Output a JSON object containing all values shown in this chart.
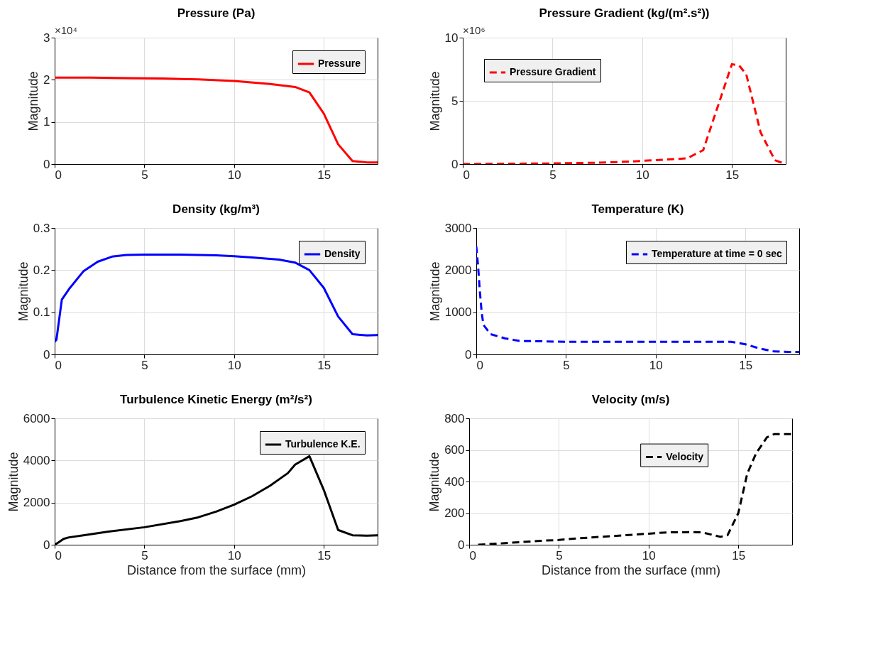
{
  "chart_data": [
    {
      "type": "line",
      "title": "Pressure (Pa)",
      "ylabel": "Magnitude",
      "annotations": [
        "×10⁴"
      ],
      "x": [
        0,
        2,
        4,
        6,
        8,
        10,
        12,
        13.4,
        14.2,
        15,
        15.8,
        16.6,
        17.4,
        18
      ],
      "series": [
        {
          "name": "Pressure",
          "color": "#ff0000",
          "values": [
            2.05,
            2.05,
            2.04,
            2.03,
            2.01,
            1.97,
            1.9,
            1.83,
            1.7,
            1.2,
            0.47,
            0.07,
            0.04,
            0.04
          ]
        }
      ],
      "xlim": [
        0,
        18
      ],
      "xticks": [
        0,
        5,
        10,
        15
      ],
      "ylim": [
        0,
        3
      ],
      "yticks": [
        0,
        1,
        2,
        3
      ],
      "grid": true,
      "legend": "top right",
      "line_style": "solid"
    },
    {
      "type": "line",
      "title": "Pressure Gradient (kg/(m².s²))",
      "ylabel": "Magnitude",
      "annotations": [
        "×10⁶"
      ],
      "x": [
        0,
        2,
        5,
        8,
        10,
        12.5,
        13.4,
        14.2,
        15,
        15.4,
        15.8,
        16.6,
        17.4,
        18
      ],
      "series": [
        {
          "name": "Pressure Gradient",
          "color": "#ff0000",
          "values": [
            0,
            0.02,
            0.05,
            0.12,
            0.25,
            0.45,
            1.1,
            4.5,
            7.9,
            7.8,
            7.1,
            2.5,
            0.3,
            0
          ]
        }
      ],
      "xlim": [
        0,
        18
      ],
      "xticks": [
        0,
        5,
        10,
        15
      ],
      "ylim": [
        0,
        10
      ],
      "yticks": [
        0,
        5,
        10
      ],
      "grid": true,
      "legend": "top left",
      "line_style": "dashed"
    },
    {
      "type": "line",
      "title": "Density (kg/m³)",
      "ylabel": "Magnitude",
      "x": [
        0,
        0.1,
        0.4,
        0.8,
        1.6,
        2.4,
        3.2,
        4,
        5,
        7,
        9,
        10,
        11,
        12.5,
        13.4,
        14.2,
        15,
        15.8,
        16.6,
        17.4,
        18
      ],
      "series": [
        {
          "name": "Density",
          "color": "#0000ff",
          "values": [
            0.03,
            0.035,
            0.13,
            0.155,
            0.197,
            0.22,
            0.232,
            0.236,
            0.237,
            0.237,
            0.235,
            0.233,
            0.23,
            0.225,
            0.218,
            0.2,
            0.158,
            0.09,
            0.048,
            0.045,
            0.046
          ]
        }
      ],
      "xlim": [
        0,
        18
      ],
      "xticks": [
        0,
        5,
        10,
        15
      ],
      "ylim": [
        0,
        0.3
      ],
      "yticks": [
        0,
        0.1,
        0.2,
        0.3
      ],
      "grid": true,
      "legend": "top right",
      "line_style": "solid"
    },
    {
      "type": "line",
      "title": "Temperature (K)",
      "ylabel": "Magnitude",
      "x": [
        0,
        0.1,
        0.2,
        0.3,
        0.4,
        0.8,
        1.6,
        2.4,
        5,
        10,
        14.2,
        15,
        15.8,
        16.6,
        17.4,
        18
      ],
      "series": [
        {
          "name": "Temperature at time = 0 sec",
          "color": "#0000ff",
          "values": [
            2570,
            2100,
            1500,
            1000,
            700,
            480,
            380,
            320,
            300,
            300,
            300,
            240,
            140,
            70,
            60,
            60
          ]
        }
      ],
      "xlim": [
        0,
        18
      ],
      "xticks": [
        0,
        5,
        10,
        15
      ],
      "ylim": [
        0,
        3000
      ],
      "yticks": [
        0,
        1000,
        2000,
        3000
      ],
      "grid": true,
      "legend": "top right",
      "line_style": "dashed"
    },
    {
      "type": "line",
      "title": "Turbulence Kinetic Energy (m²/s²)",
      "xlabel": "Distance from the surface (mm)",
      "ylabel": "Magnitude",
      "x": [
        0,
        0.2,
        0.5,
        0.8,
        1.6,
        3,
        5,
        7,
        8,
        9,
        10,
        11,
        12,
        13,
        13.4,
        14.2,
        15,
        15.8,
        16.6,
        17.4,
        18
      ],
      "series": [
        {
          "name": "Turbulence K.E.",
          "color": "#000000",
          "values": [
            0,
            100,
            280,
            350,
            450,
            620,
            830,
            1120,
            1300,
            1570,
            1900,
            2300,
            2800,
            3400,
            3800,
            4200,
            2600,
            700,
            450,
            430,
            450
          ]
        }
      ],
      "xlim": [
        0,
        18
      ],
      "xticks": [
        0,
        5,
        10,
        15
      ],
      "ylim": [
        0,
        6000
      ],
      "yticks": [
        0,
        2000,
        4000,
        6000
      ],
      "grid": true,
      "legend": "top right",
      "line_style": "solid"
    },
    {
      "type": "line",
      "title": "Velocity (m/s)",
      "xlabel": "Distance from the surface (mm)",
      "ylabel": "Magnitude",
      "x": [
        0.5,
        2,
        4,
        5,
        6,
        8,
        10,
        11,
        12.5,
        13,
        14,
        14.4,
        15,
        15.5,
        16,
        16.6,
        17,
        18
      ],
      "series": [
        {
          "name": "Velocity",
          "color": "#000000",
          "values": [
            0,
            10,
            25,
            30,
            40,
            55,
            70,
            78,
            80,
            78,
            50,
            60,
            200,
            450,
            580,
            680,
            700,
            700
          ]
        }
      ],
      "xlim": [
        0,
        18
      ],
      "xticks": [
        0,
        5,
        10,
        15
      ],
      "ylim": [
        0,
        800
      ],
      "yticks": [
        0,
        200,
        400,
        600,
        800
      ],
      "grid": true,
      "legend": "right",
      "line_style": "dashed"
    }
  ]
}
